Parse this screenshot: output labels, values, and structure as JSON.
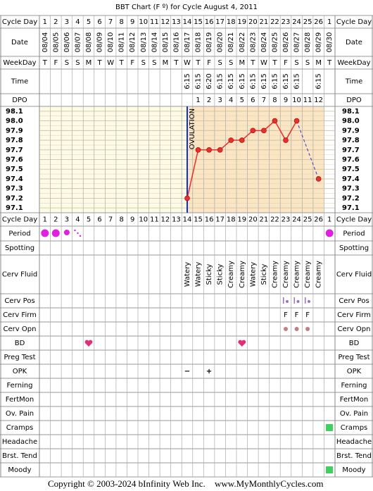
{
  "title": "BBT Chart (F º) for Cycle August 4, 2011",
  "row_labels": [
    "Cycle Day",
    "Date",
    "WeekDay",
    "Time",
    "DPO",
    "Cycle Day",
    "Period",
    "Spotting",
    "Cerv Fluid",
    "Cerv Pos",
    "Cerv Firm",
    "Cerv Opn",
    "BD",
    "Preg Test",
    "OPK",
    "Ferning",
    "FertMon",
    "Ov. Pain",
    "Cramps",
    "Headache",
    "Brst. Tend",
    "Moody"
  ],
  "cycle_days": [
    1,
    2,
    3,
    4,
    5,
    6,
    7,
    8,
    9,
    10,
    11,
    12,
    13,
    14,
    15,
    16,
    17,
    18,
    19,
    20,
    21,
    22,
    23,
    24,
    25,
    26,
    1
  ],
  "dates": [
    "08/04",
    "08/05",
    "08/06",
    "08/07",
    "08/08",
    "08/09",
    "08/10",
    "08/11",
    "08/12",
    "08/13",
    "08/14",
    "08/15",
    "08/16",
    "08/17",
    "08/18",
    "08/19",
    "08/20",
    "08/21",
    "08/22",
    "08/23",
    "08/24",
    "08/25",
    "08/26",
    "08/27",
    "08/28",
    "08/29",
    "08/30"
  ],
  "weekdays": [
    "T",
    "F",
    "S",
    "S",
    "M",
    "T",
    "W",
    "T",
    "F",
    "S",
    "S",
    "M",
    "T",
    "W",
    "T",
    "F",
    "S",
    "S",
    "M",
    "T",
    "W",
    "T",
    "F",
    "S",
    "S",
    "M",
    "T"
  ],
  "times": [
    null,
    null,
    null,
    null,
    null,
    null,
    null,
    null,
    null,
    null,
    null,
    null,
    null,
    "6:15",
    "6:15",
    "6:20",
    "6:15",
    "6:15",
    "6:15",
    "6:15",
    "6:15",
    "6:15",
    "6:15",
    "6:15",
    null,
    "6:15",
    null
  ],
  "dpo": [
    null,
    null,
    null,
    null,
    null,
    null,
    null,
    null,
    null,
    null,
    null,
    null,
    null,
    null,
    1,
    2,
    3,
    4,
    5,
    6,
    7,
    8,
    9,
    10,
    11,
    12,
    null
  ],
  "cervical_fluid": [
    null,
    null,
    null,
    null,
    null,
    null,
    null,
    null,
    null,
    null,
    null,
    null,
    null,
    "Watery",
    "Watery",
    "Sticky",
    "Sticky",
    "Creamy",
    "Creamy",
    "Watery",
    "Sticky",
    "Creamy",
    "Creamy",
    "Creamy",
    "Creamy",
    "Creamy",
    null
  ],
  "cervical_firmness": [
    null,
    null,
    null,
    null,
    null,
    null,
    null,
    null,
    null,
    null,
    null,
    null,
    null,
    null,
    null,
    null,
    null,
    null,
    null,
    null,
    null,
    null,
    "F",
    "F",
    "F",
    null,
    null
  ],
  "opk": [
    null,
    null,
    null,
    null,
    null,
    null,
    null,
    null,
    null,
    null,
    null,
    null,
    null,
    "−",
    null,
    "+",
    null,
    null,
    null,
    null,
    null,
    null,
    null,
    null,
    null,
    null,
    null
  ],
  "chart_data": {
    "type": "line",
    "annotation": "OVULATION",
    "color": "#e53030",
    "values": [
      null,
      null,
      null,
      null,
      null,
      null,
      null,
      null,
      null,
      null,
      null,
      null,
      null,
      97.2,
      97.7,
      97.7,
      97.7,
      97.8,
      97.8,
      97.9,
      97.9,
      98.0,
      97.8,
      98.0,
      null,
      97.4,
      null
    ],
    "ylim": [
      97.05,
      98.15
    ],
    "yticks": [
      98.1,
      {
        "value": 98.0,
        "label": "98.0"
      },
      97.9,
      97.8,
      97.7,
      97.6,
      97.5,
      97.4,
      97.3,
      97.2,
      97.1
    ]
  },
  "footer": {
    "copyright": "Copyright © 2003-2024 bInfinity Web Inc.",
    "site": "www.MyMonthlyCycles.com"
  }
}
